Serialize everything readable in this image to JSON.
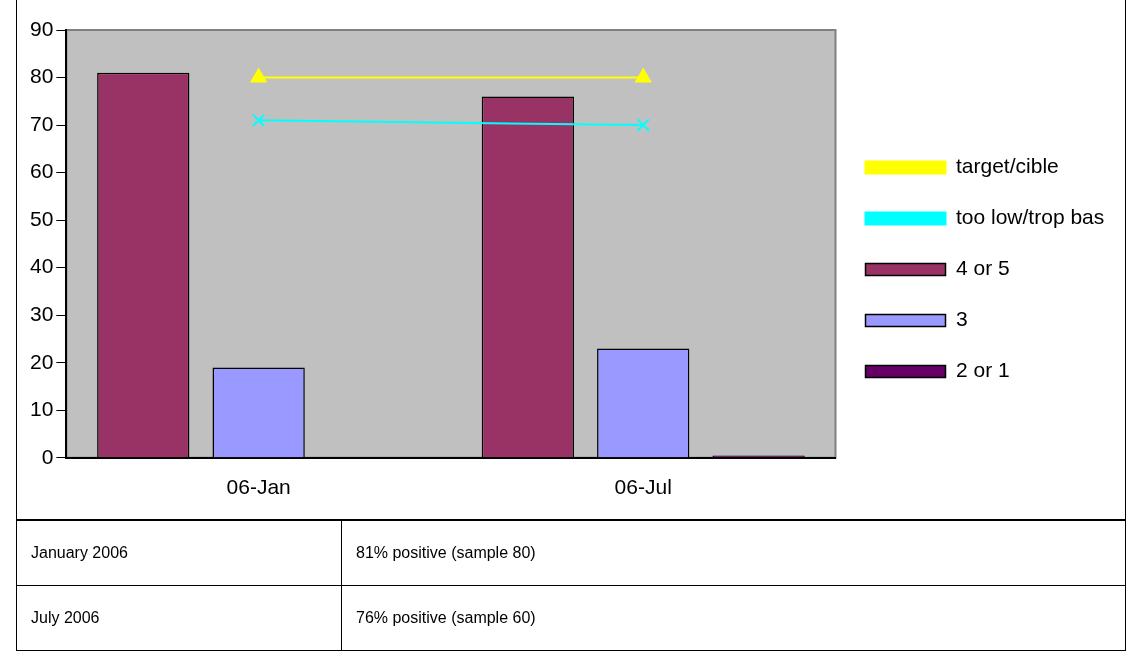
{
  "chart_data": {
    "type": "bar",
    "categories": [
      "06-Jan",
      "06-Jul"
    ],
    "series": [
      {
        "name": "4 or 5",
        "color": "#993366",
        "values": [
          81,
          76
        ]
      },
      {
        "name": "3",
        "color": "#9999ff",
        "values": [
          19,
          23
        ]
      },
      {
        "name": "2 or 1",
        "color": "#660066",
        "values": [
          0,
          0.5
        ]
      },
      {
        "name": "target/cible",
        "type": "line",
        "color": "#ffff00",
        "marker": "triangle",
        "values": [
          80,
          80
        ]
      },
      {
        "name": "too low/trop bas",
        "type": "line",
        "color": "#00ffff",
        "marker": "cross",
        "values": [
          71,
          70
        ]
      }
    ],
    "ylim": [
      0,
      90
    ],
    "yticks": [
      0,
      10,
      20,
      30,
      40,
      50,
      60,
      70,
      80,
      90
    ],
    "grid": false,
    "legend": "right",
    "annotations": [
      "January 2006",
      "81% positive (sample 80)",
      "July 2006",
      "76% positive (sample 60)"
    ]
  }
}
